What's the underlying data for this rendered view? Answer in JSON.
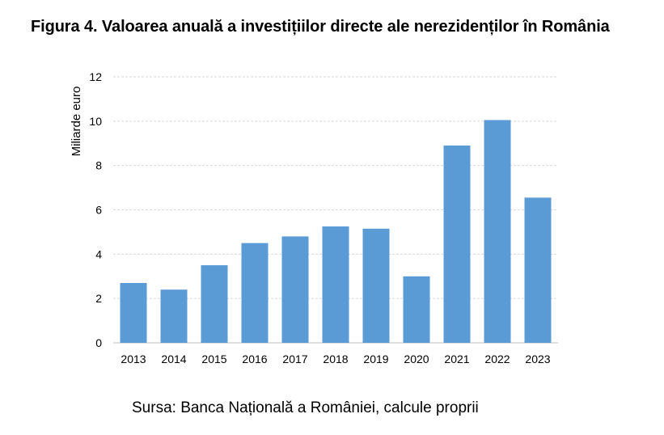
{
  "title": "Figura 4. Valoarea anuală a investițiilor directe ale nerezidenților în România",
  "source": "Sursa: Banca Națională a României, calcule proprii",
  "chart_data": {
    "type": "bar",
    "ylabel": "Miliarde euro",
    "xlabel": "",
    "categories": [
      "2013",
      "2014",
      "2015",
      "2016",
      "2017",
      "2018",
      "2019",
      "2020",
      "2021",
      "2022",
      "2023"
    ],
    "values": [
      2.7,
      2.4,
      3.5,
      4.5,
      4.8,
      5.25,
      5.15,
      3.0,
      8.9,
      10.05,
      6.55
    ],
    "ylim": [
      0,
      12
    ],
    "yticks": [
      0,
      2,
      4,
      6,
      8,
      10,
      12
    ],
    "grid": true,
    "bar_color": "#5b9bd5",
    "grid_color": "#d9d9d9"
  }
}
